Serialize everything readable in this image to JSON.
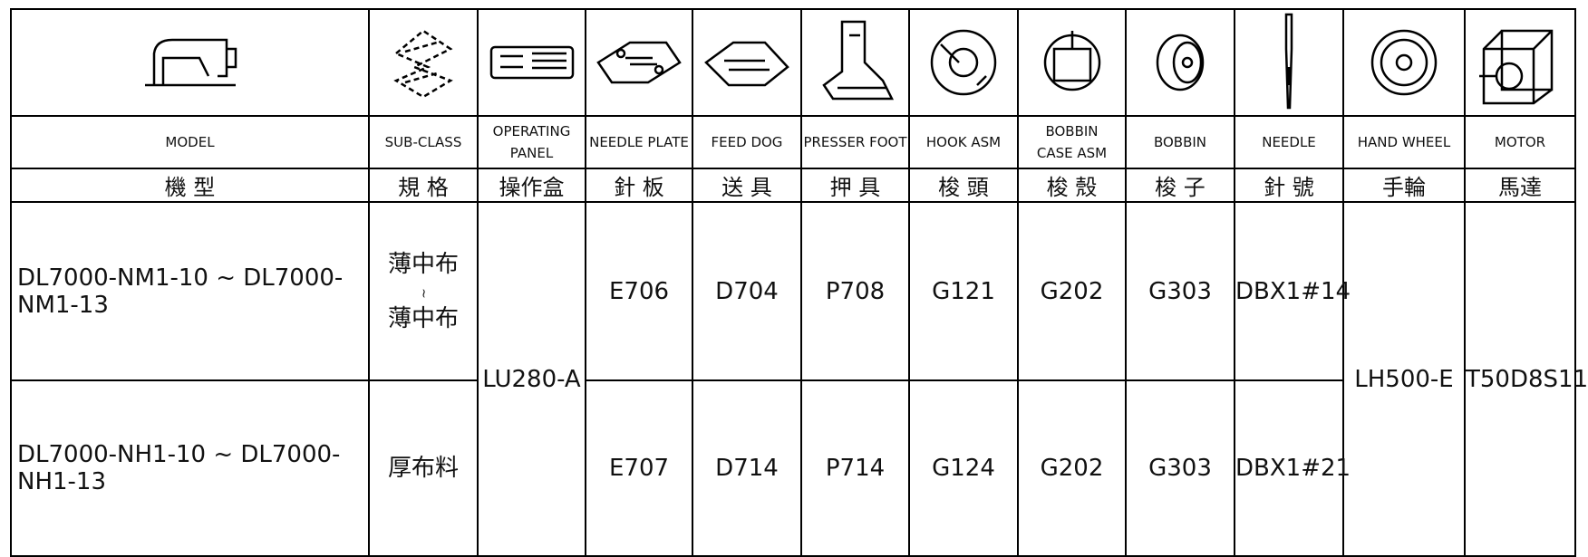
{
  "columns": [
    {
      "en": [
        "MODEL"
      ],
      "zh": "機 型"
    },
    {
      "en": [
        "SUB-CLASS"
      ],
      "zh": "規 格"
    },
    {
      "en": [
        "OPERATING",
        "PANEL"
      ],
      "zh": "操作盒"
    },
    {
      "en": [
        "NEEDLE PLATE"
      ],
      "zh": "針 板"
    },
    {
      "en": [
        "FEED DOG"
      ],
      "zh": "送 具"
    },
    {
      "en": [
        "PRESSER FOOT"
      ],
      "zh": "押 具"
    },
    {
      "en": [
        "HOOK ASM"
      ],
      "zh": "梭 頭"
    },
    {
      "en": [
        "BOBBIN",
        "CASE ASM"
      ],
      "zh": "梭 殼"
    },
    {
      "en": [
        "BOBBIN"
      ],
      "zh": "梭 子"
    },
    {
      "en": [
        "NEEDLE"
      ],
      "zh": "針 號"
    },
    {
      "en": [
        "HAND WHEEL"
      ],
      "zh": "手輪"
    },
    {
      "en": [
        "MOTOR"
      ],
      "zh": "馬達"
    }
  ],
  "rows": [
    {
      "model": "DL7000-NM1-10 ~ DL7000-NM1-13",
      "sub_class": [
        "薄中布",
        "~",
        "薄中布"
      ],
      "needle_plate": "E706",
      "feed_dog": "D704",
      "presser_foot": "P708",
      "hook": "G121",
      "bobbin_case": "G202",
      "bobbin": "G303",
      "needle": "DBX1#14"
    },
    {
      "model": "DL7000-NH1-10 ~ DL7000-NH1-13",
      "sub_class": [
        "厚布料"
      ],
      "needle_plate": "E707",
      "feed_dog": "D714",
      "presser_foot": "P714",
      "hook": "G124",
      "bobbin_case": "G202",
      "bobbin": "G303",
      "needle": "DBX1#21"
    }
  ],
  "shared": {
    "operating_panel": "LU280-A",
    "hand_wheel": "LH500-E",
    "motor": "T50D8S11"
  }
}
